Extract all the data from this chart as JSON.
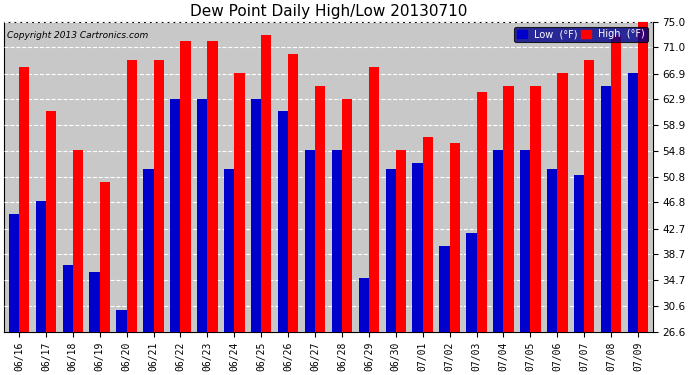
{
  "title": "Dew Point Daily High/Low 20130710",
  "copyright": "Copyright 2013 Cartronics.com",
  "dates": [
    "06/16",
    "06/17",
    "06/18",
    "06/19",
    "06/20",
    "06/21",
    "06/22",
    "06/23",
    "06/24",
    "06/25",
    "06/26",
    "06/27",
    "06/28",
    "06/29",
    "06/30",
    "07/01",
    "07/02",
    "07/03",
    "07/04",
    "07/05",
    "07/06",
    "07/07",
    "07/08",
    "07/09"
  ],
  "low_values": [
    45.0,
    47.0,
    37.0,
    36.0,
    30.0,
    52.0,
    63.0,
    63.0,
    52.0,
    63.0,
    61.0,
    55.0,
    55.0,
    35.0,
    52.0,
    53.0,
    40.0,
    42.0,
    55.0,
    55.0,
    52.0,
    51.0,
    65.0,
    67.0
  ],
  "high_values": [
    68.0,
    61.0,
    55.0,
    50.0,
    69.0,
    69.0,
    72.0,
    72.0,
    67.0,
    73.0,
    70.0,
    65.0,
    63.0,
    68.0,
    55.0,
    57.0,
    56.0,
    64.0,
    65.0,
    65.0,
    67.0,
    69.0,
    73.0,
    75.0
  ],
  "bar_color_low": "#0000cc",
  "bar_color_high": "#ff0000",
  "background_color": "#ffffff",
  "grid_color": "#ffffff",
  "plot_bg_color": "#c8c8c8",
  "ymin": 26.6,
  "ymax": 75.0,
  "yticks": [
    26.6,
    30.6,
    34.7,
    38.7,
    42.7,
    46.8,
    50.8,
    54.8,
    58.9,
    62.9,
    66.9,
    71.0,
    75.0
  ],
  "ytick_labels": [
    "26.6",
    "30.6",
    "34.7",
    "38.7",
    "42.7",
    "46.8",
    "50.8",
    "54.8",
    "58.9",
    "62.9",
    "66.9",
    "71.0",
    "75.0"
  ]
}
